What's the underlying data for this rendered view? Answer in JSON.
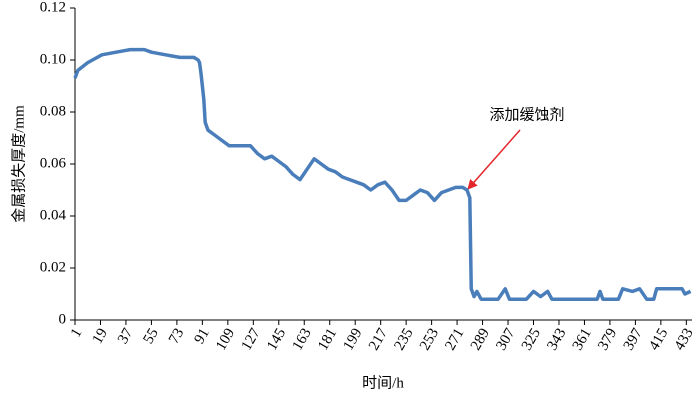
{
  "chart_data": {
    "type": "line",
    "x_label": "时间/h",
    "y_label": "金属损失厚度/mm",
    "annotation": "添加缓蚀剂",
    "color": "#4a7ebb",
    "x": [
      1,
      3,
      10,
      20,
      30,
      40,
      50,
      55,
      65,
      75,
      85,
      88,
      89,
      90,
      92,
      93,
      95,
      100,
      105,
      110,
      125,
      130,
      135,
      140,
      145,
      150,
      155,
      160,
      165,
      170,
      175,
      180,
      185,
      190,
      195,
      200,
      205,
      210,
      215,
      220,
      225,
      230,
      235,
      240,
      245,
      250,
      255,
      260,
      265,
      270,
      275,
      278,
      280,
      281,
      283,
      285,
      288,
      300,
      305,
      308,
      320,
      325,
      330,
      335,
      338,
      370,
      372,
      374,
      385,
      388,
      395,
      400,
      405,
      410,
      412,
      430,
      432,
      436
    ],
    "values": [
      0.093,
      0.096,
      0.099,
      0.102,
      0.103,
      0.104,
      0.104,
      0.103,
      0.102,
      0.101,
      0.101,
      0.1,
      0.099,
      0.095,
      0.085,
      0.076,
      0.073,
      0.071,
      0.069,
      0.067,
      0.067,
      0.064,
      0.062,
      0.063,
      0.061,
      0.059,
      0.056,
      0.054,
      0.058,
      0.062,
      0.06,
      0.058,
      0.057,
      0.055,
      0.054,
      0.053,
      0.052,
      0.05,
      0.052,
      0.053,
      0.05,
      0.046,
      0.046,
      0.048,
      0.05,
      0.049,
      0.046,
      0.049,
      0.05,
      0.051,
      0.051,
      0.05,
      0.047,
      0.012,
      0.009,
      0.011,
      0.008,
      0.008,
      0.012,
      0.008,
      0.008,
      0.011,
      0.009,
      0.011,
      0.008,
      0.008,
      0.011,
      0.008,
      0.008,
      0.012,
      0.011,
      0.012,
      0.008,
      0.008,
      0.012,
      0.012,
      0.01,
      0.011
    ],
    "xlim": [
      1,
      437
    ],
    "xticks": [
      1,
      19,
      37,
      55,
      73,
      91,
      109,
      127,
      145,
      163,
      181,
      199,
      217,
      235,
      253,
      271,
      289,
      307,
      325,
      343,
      361,
      379,
      397,
      415,
      433
    ],
    "ylim": [
      0,
      0.12
    ],
    "yticks": [
      0,
      0.02,
      0.04,
      0.06,
      0.08,
      {
        "value": 0.1,
        "label": "0.10"
      },
      0.12
    ]
  }
}
